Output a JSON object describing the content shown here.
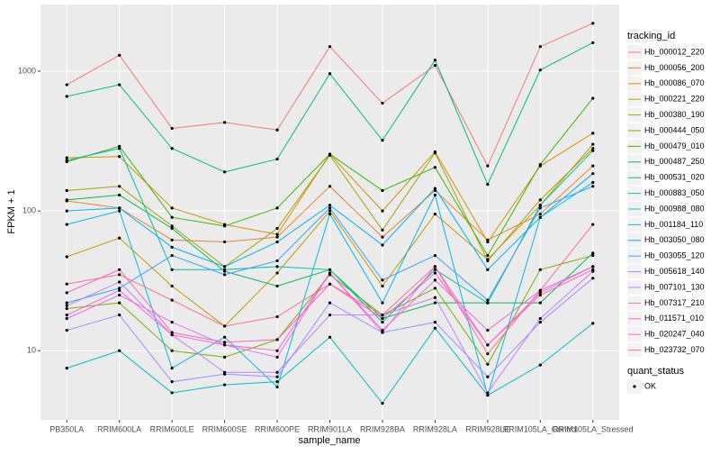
{
  "chart_data": {
    "type": "line",
    "x_label": "sample_name",
    "y_label": "FPKM + 1",
    "categories": [
      "PB350LA",
      "RRIM600LA",
      "RRIM600LE",
      "RRIM600SE",
      "RRIM600PE",
      "RRIM901LA",
      "RRIM928BA",
      "RRIM928LA",
      "RRIM928LE",
      "RRIM105LA_Control",
      "RRIM105LA_Stressed"
    ],
    "log_y": true,
    "grid": true,
    "ylim": [
      3.2,
      3000
    ],
    "yticks": [
      10,
      100,
      1000
    ],
    "legend_title": "tracking_id",
    "legend_position": "right",
    "point_legend": {
      "title": "quant_status",
      "label": "OK",
      "color": "#000000"
    },
    "series": [
      {
        "name": "Hb_000012_220",
        "color": "#F8766D",
        "values": [
          800,
          1300,
          390,
          430,
          380,
          1500,
          590,
          1100,
          210,
          1500,
          2200
        ]
      },
      {
        "name": "Hb_000056_200",
        "color": "#EA8331",
        "values": [
          118,
          105,
          62,
          60,
          65,
          150,
          65,
          140,
          62,
          95,
          210
        ]
      },
      {
        "name": "Hb_000086_070",
        "color": "#D89000",
        "values": [
          240,
          245,
          105,
          80,
          68,
          255,
          100,
          265,
          60,
          210,
          360
        ]
      },
      {
        "name": "Hb_000221_220",
        "color": "#C09B00",
        "values": [
          47,
          64,
          29,
          15,
          36,
          100,
          29,
          95,
          45,
          110,
          300
        ]
      },
      {
        "name": "Hb_000380_190",
        "color": "#A3A500",
        "values": [
          140,
          150,
          78,
          40,
          75,
          250,
          73,
          260,
          44,
          120,
          280
        ]
      },
      {
        "name": "Hb_000444_050",
        "color": "#7CAE00",
        "values": [
          20,
          22,
          10,
          9,
          12,
          35,
          18,
          28,
          8,
          38,
          48
        ]
      },
      {
        "name": "Hb_000479_010",
        "color": "#39B600",
        "values": [
          225,
          290,
          90,
          78,
          105,
          255,
          140,
          205,
          48,
          215,
          640
        ]
      },
      {
        "name": "Hb_000487_250",
        "color": "#00BB4E",
        "values": [
          120,
          130,
          75,
          37,
          29,
          38,
          17,
          22,
          22,
          22,
          50
        ]
      },
      {
        "name": "Hb_000531_020",
        "color": "#00BF7D",
        "values": [
          660,
          800,
          280,
          190,
          235,
          960,
          320,
          1200,
          155,
          1020,
          1600
        ]
      },
      {
        "name": "Hb_000883_050",
        "color": "#00C1A3",
        "values": [
          230,
          280,
          38,
          38,
          40,
          38,
          16,
          38,
          22,
          110,
          270
        ]
      },
      {
        "name": "Hb_000988_080",
        "color": "#00BFC4",
        "values": [
          7.5,
          10,
          5,
          5.7,
          6,
          12.5,
          4.2,
          14.5,
          4.8,
          7.9,
          15.7
        ]
      },
      {
        "name": "Hb_001184_110",
        "color": "#00BAE0",
        "values": [
          80,
          100,
          7.5,
          12.5,
          5.5,
          95,
          22,
          130,
          4.8,
          90,
          160
        ]
      },
      {
        "name": "Hb_003050_080",
        "color": "#00B0F6",
        "values": [
          100,
          105,
          55,
          40,
          60,
          110,
          57,
          145,
          38,
          90,
          185
        ]
      },
      {
        "name": "Hb_003055_120",
        "color": "#35A2FF",
        "values": [
          22,
          28,
          48,
          35,
          44,
          105,
          32,
          48,
          23,
          105,
          150
        ]
      },
      {
        "name": "Hb_005618_140",
        "color": "#9590FF",
        "values": [
          14,
          18,
          6,
          6.8,
          6.5,
          22,
          13.5,
          16,
          6.5,
          16,
          33
        ]
      },
      {
        "name": "Hb_007101_130",
        "color": "#C77CFF",
        "values": [
          21,
          31,
          13,
          7,
          7,
          18,
          18,
          24,
          5,
          17,
          37
        ]
      },
      {
        "name": "Hb_007317_210",
        "color": "#E76BF3",
        "values": [
          17,
          25,
          16,
          11,
          9,
          36,
          13.5,
          40,
          11,
          26,
          40
        ]
      },
      {
        "name": "Hb_011571_010",
        "color": "#FA62DB",
        "values": [
          18,
          27,
          13,
          11,
          10,
          36,
          14,
          32,
          14,
          27,
          40
        ]
      },
      {
        "name": "Hb_020247_040",
        "color": "#FF62BC",
        "values": [
          26,
          38,
          13.5,
          11.5,
          12,
          30,
          17,
          36,
          11,
          25,
          38
        ]
      },
      {
        "name": "Hb_023732_070",
        "color": "#FF6C91",
        "values": [
          30,
          35,
          23,
          15,
          17.5,
          30,
          18,
          40,
          9.5,
          27,
          80
        ]
      }
    ]
  }
}
